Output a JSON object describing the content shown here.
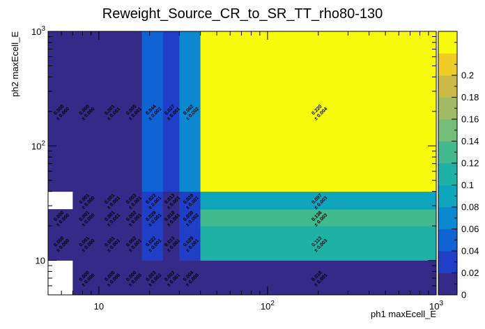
{
  "chart_data": {
    "type": "heatmap",
    "title": "Reweight_Source_CR_to_SR_TT_rho80-130",
    "xlabel": "ph1 maxEcell_E",
    "ylabel": "ph2 maxEcell_E",
    "x_scale": "log",
    "y_scale": "log",
    "xlim": [
      5,
      1000
    ],
    "ylim": [
      5,
      1000
    ],
    "x_tick_labels": [
      {
        "value": 10,
        "label": "10"
      },
      {
        "value": 100,
        "label": "10²"
      },
      {
        "value": 1000,
        "label": "10³"
      }
    ],
    "y_tick_labels": [
      {
        "value": 10,
        "label": "10"
      },
      {
        "value": 100,
        "label": "10²"
      },
      {
        "value": 1000,
        "label": "10³"
      }
    ],
    "x_edges": [
      5,
      7,
      10,
      14,
      18,
      24,
      30,
      40,
      1000
    ],
    "y_edges": [
      5,
      10,
      20,
      28,
      40,
      1000
    ],
    "z_range": [
      0,
      0.24
    ],
    "colorbar_ticks": [
      0,
      0.02,
      0.04,
      0.06,
      0.08,
      0.1,
      0.12,
      0.14,
      0.16,
      0.18,
      0.2
    ],
    "colorbar_labels": [
      "0",
      "0.02",
      "0.04",
      "0.06",
      "0.08",
      "0.1",
      "0.12",
      "0.14",
      "0.16",
      "0.18",
      "0.2"
    ],
    "cells": [
      {
        "x": 0,
        "y": 0,
        "value": 0.0,
        "error": 0.0,
        "empty": true
      },
      {
        "x": 1,
        "y": 0,
        "value": 0.0,
        "error": 0.0,
        "value_label": "0.000",
        "error_label": "± 0.000"
      },
      {
        "x": 2,
        "y": 0,
        "value": 0.0,
        "error": 0.0,
        "value_label": "0.000",
        "error_label": "± 0.000"
      },
      {
        "x": 3,
        "y": 0,
        "value": 0.0,
        "error": 0.0,
        "value_label": "0.000",
        "error_label": "± 0.000"
      },
      {
        "x": 4,
        "y": 0,
        "value": 0.003,
        "error": 0.002,
        "value_label": "0.003",
        "error_label": "± 0.002"
      },
      {
        "x": 5,
        "y": 0,
        "value": 0.002,
        "error": 0.001,
        "value_label": "0.002",
        "error_label": "± 0.001"
      },
      {
        "x": 6,
        "y": 0,
        "value": 0.004,
        "error": 0.0,
        "value_label": "0.004",
        "error_label": "± 0.000"
      },
      {
        "x": 7,
        "y": 0,
        "value": 0.018,
        "error": 0.001,
        "value_label": "0.018",
        "error_label": "± 0.001"
      },
      {
        "x": 0,
        "y": 1,
        "value": 0.0,
        "error": 0.0,
        "value_label": "0.000",
        "error_label": "± 0.000"
      },
      {
        "x": 1,
        "y": 1,
        "value": 0.001,
        "error": 0.0,
        "value_label": "0.001",
        "error_label": "± 0.000"
      },
      {
        "x": 2,
        "y": 1,
        "value": 0.001,
        "error": 0.001,
        "value_label": "0.001",
        "error_label": "± 0.001"
      },
      {
        "x": 3,
        "y": 1,
        "value": 0.002,
        "error": 0.001,
        "value_label": "0.002",
        "error_label": "± 0.001"
      },
      {
        "x": 4,
        "y": 1,
        "value": 0.022,
        "error": 0.001,
        "value_label": "0.022",
        "error_label": "± 0.001"
      },
      {
        "x": 5,
        "y": 1,
        "value": 0.013,
        "error": 0.001,
        "value_label": "0.013",
        "error_label": "± 0.001"
      },
      {
        "x": 6,
        "y": 1,
        "value": 0.029,
        "error": 0.001,
        "value_label": "0.029",
        "error_label": "± 0.001"
      },
      {
        "x": 7,
        "y": 1,
        "value": 0.113,
        "error": 0.003,
        "value_label": "0.113",
        "error_label": "± 0.003"
      },
      {
        "x": 0,
        "y": 2,
        "value": 0.0,
        "error": 0.0,
        "value_label": "0.000",
        "error_label": "± 0.000"
      },
      {
        "x": 1,
        "y": 2,
        "value": 0.001,
        "error": 0.0,
        "value_label": "0.001",
        "error_label": "± 0.000"
      },
      {
        "x": 2,
        "y": 2,
        "value": 0.001,
        "error": 0.001,
        "value_label": "0.001",
        "error_label": "± 0.001"
      },
      {
        "x": 3,
        "y": 2,
        "value": 0.002,
        "error": 0.001,
        "value_label": "0.002",
        "error_label": "± 0.001"
      },
      {
        "x": 4,
        "y": 2,
        "value": 0.029,
        "error": 0.001,
        "value_label": "0.029",
        "error_label": "± 0.001"
      },
      {
        "x": 5,
        "y": 2,
        "value": 0.018,
        "error": 0.001,
        "value_label": "0.018",
        "error_label": "± 0.001"
      },
      {
        "x": 6,
        "y": 2,
        "value": 0.038,
        "error": 0.002,
        "value_label": "0.038",
        "error_label": "± 0.002"
      },
      {
        "x": 7,
        "y": 2,
        "value": 0.136,
        "error": 0.003,
        "value_label": "0.136",
        "error_label": "± 0.003"
      },
      {
        "x": 0,
        "y": 3,
        "value": 0.0,
        "error": 0.0,
        "empty": true
      },
      {
        "x": 1,
        "y": 3,
        "value": 0.001,
        "error": 0.0,
        "value_label": "0.001",
        "error_label": "± 0.000"
      },
      {
        "x": 2,
        "y": 3,
        "value": 0.001,
        "error": 0.001,
        "value_label": "0.001",
        "error_label": "± 0.001"
      },
      {
        "x": 3,
        "y": 3,
        "value": 0.003,
        "error": 0.001,
        "value_label": "0.003",
        "error_label": "± 0.001"
      },
      {
        "x": 4,
        "y": 3,
        "value": 0.022,
        "error": 0.001,
        "value_label": "0.022",
        "error_label": "± 0.001"
      },
      {
        "x": 5,
        "y": 3,
        "value": 0.013,
        "error": 0.001,
        "value_label": "0.013",
        "error_label": "± 0.001"
      },
      {
        "x": 6,
        "y": 3,
        "value": 0.026,
        "error": 0.001,
        "value_label": "0.026",
        "error_label": "± 0.001"
      },
      {
        "x": 7,
        "y": 3,
        "value": 0.097,
        "error": 0.003,
        "value_label": "0.097",
        "error_label": "± 0.003"
      },
      {
        "x": 0,
        "y": 4,
        "value": 0.0,
        "error": 0.0,
        "value_label": "0.000",
        "error_label": "± 0.000"
      },
      {
        "x": 1,
        "y": 4,
        "value": 0.0,
        "error": 0.0,
        "value_label": "0.000",
        "error_label": "± 0.000"
      },
      {
        "x": 2,
        "y": 4,
        "value": 0.001,
        "error": 0.001,
        "value_label": "0.001",
        "error_label": "± 0.001"
      },
      {
        "x": 3,
        "y": 4,
        "value": 0.005,
        "error": 0.001,
        "value_label": "0.005",
        "error_label": "± 0.001"
      },
      {
        "x": 4,
        "y": 4,
        "value": 0.044,
        "error": 0.002,
        "value_label": "0.044",
        "error_label": "± 0.002"
      },
      {
        "x": 5,
        "y": 4,
        "value": 0.027,
        "error": 0.001,
        "value_label": "0.027",
        "error_label": "± 0.001"
      },
      {
        "x": 6,
        "y": 4,
        "value": 0.062,
        "error": 0.002,
        "value_label": "0.062",
        "error_label": "± 0.002"
      },
      {
        "x": 7,
        "y": 4,
        "value": 0.22,
        "error": 0.004,
        "value_label": "0.220",
        "error_label": "± 0.004"
      }
    ]
  }
}
